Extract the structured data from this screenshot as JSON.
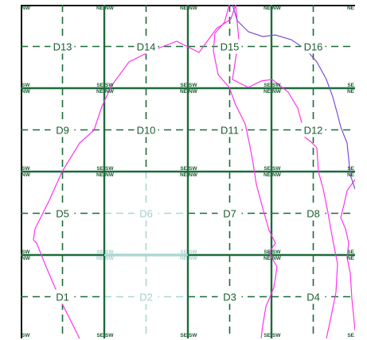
{
  "map": {
    "colors": {
      "background": "#ffffff",
      "grid_major": "#1c6b3a",
      "grid_minor": "#1c6b3a",
      "dim_grid": "#a8d8d4",
      "dim_label": "#9fd0cc",
      "boundary_pink": "#ff33ee",
      "boundary_purple": "#7a4fd6",
      "frame": "#111111"
    },
    "cells": [
      {
        "id": "D13",
        "col": 0,
        "row": 0,
        "dim": false
      },
      {
        "id": "D14",
        "col": 1,
        "row": 0,
        "dim": false
      },
      {
        "id": "D15",
        "col": 2,
        "row": 0,
        "dim": false
      },
      {
        "id": "D16",
        "col": 3,
        "row": 0,
        "dim": false
      },
      {
        "id": "D9",
        "col": 0,
        "row": 1,
        "dim": false
      },
      {
        "id": "D10",
        "col": 1,
        "row": 1,
        "dim": false
      },
      {
        "id": "D11",
        "col": 2,
        "row": 1,
        "dim": false
      },
      {
        "id": "D12",
        "col": 3,
        "row": 1,
        "dim": false
      },
      {
        "id": "D5",
        "col": 0,
        "row": 2,
        "dim": false
      },
      {
        "id": "D6",
        "col": 1,
        "row": 2,
        "dim": true
      },
      {
        "id": "D7",
        "col": 2,
        "row": 2,
        "dim": false
      },
      {
        "id": "D8",
        "col": 3,
        "row": 2,
        "dim": false
      },
      {
        "id": "D1",
        "col": 0,
        "row": 3,
        "dim": false
      },
      {
        "id": "D2",
        "col": 1,
        "row": 3,
        "dim": true
      },
      {
        "id": "D3",
        "col": 2,
        "row": 3,
        "dim": false
      },
      {
        "id": "D4",
        "col": 3,
        "row": 3,
        "dim": false
      }
    ],
    "corner_labels": {
      "se": "SE",
      "sw": "SW",
      "ne": "NE",
      "nw": "NW"
    }
  }
}
